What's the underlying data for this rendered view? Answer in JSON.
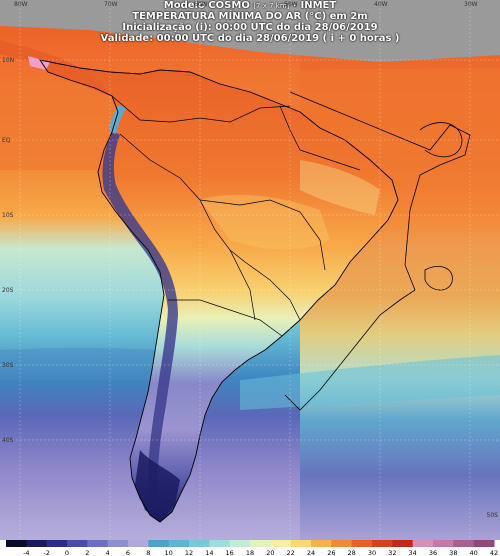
{
  "header": {
    "line1_main": "Modelo COSMO",
    "line1_small": "[7 x 7 km]",
    "line1_end": "- INMET",
    "line2": "TEMPERATURA MÍNIMA DO AR (°C) em 2m",
    "line3": "Inicialização (i): 00:00 UTC do dia 28/06/2019",
    "line4": "Validade: 00:00 UTC do dia 28/06/2019 ( i + 0 horas )"
  },
  "legend": {
    "ticks": [
      "-4",
      "-2",
      "0",
      "2",
      "4",
      "6",
      "8",
      "10",
      "12",
      "14",
      "16",
      "18",
      "20",
      "22",
      "24",
      "26",
      "28",
      "30",
      "32",
      "34",
      "36",
      "38",
      "40",
      "42"
    ],
    "colors": [
      "#0a0a2a",
      "#1a1a5c",
      "#2b2b8a",
      "#4a4aa8",
      "#6e6ec0",
      "#8f8fd0",
      "#b0a8dc",
      "#4fa0c8",
      "#5fb4d4",
      "#78c8d8",
      "#a0dcdc",
      "#c0ecd8",
      "#e0f4c0",
      "#f8f0a0",
      "#f8d870",
      "#f8b048",
      "#f08838",
      "#e86028",
      "#d84020",
      "#c02818",
      "#d890b8",
      "#c878a8",
      "#a86090",
      "#904878"
    ]
  },
  "graticule": {
    "lat_labels": [
      "10N",
      "EQ",
      "10S",
      "20S",
      "30S",
      "40S",
      "50S"
    ],
    "lon_labels": [
      "80W",
      "70W",
      "60W",
      "50W",
      "40W",
      "30W"
    ]
  }
}
